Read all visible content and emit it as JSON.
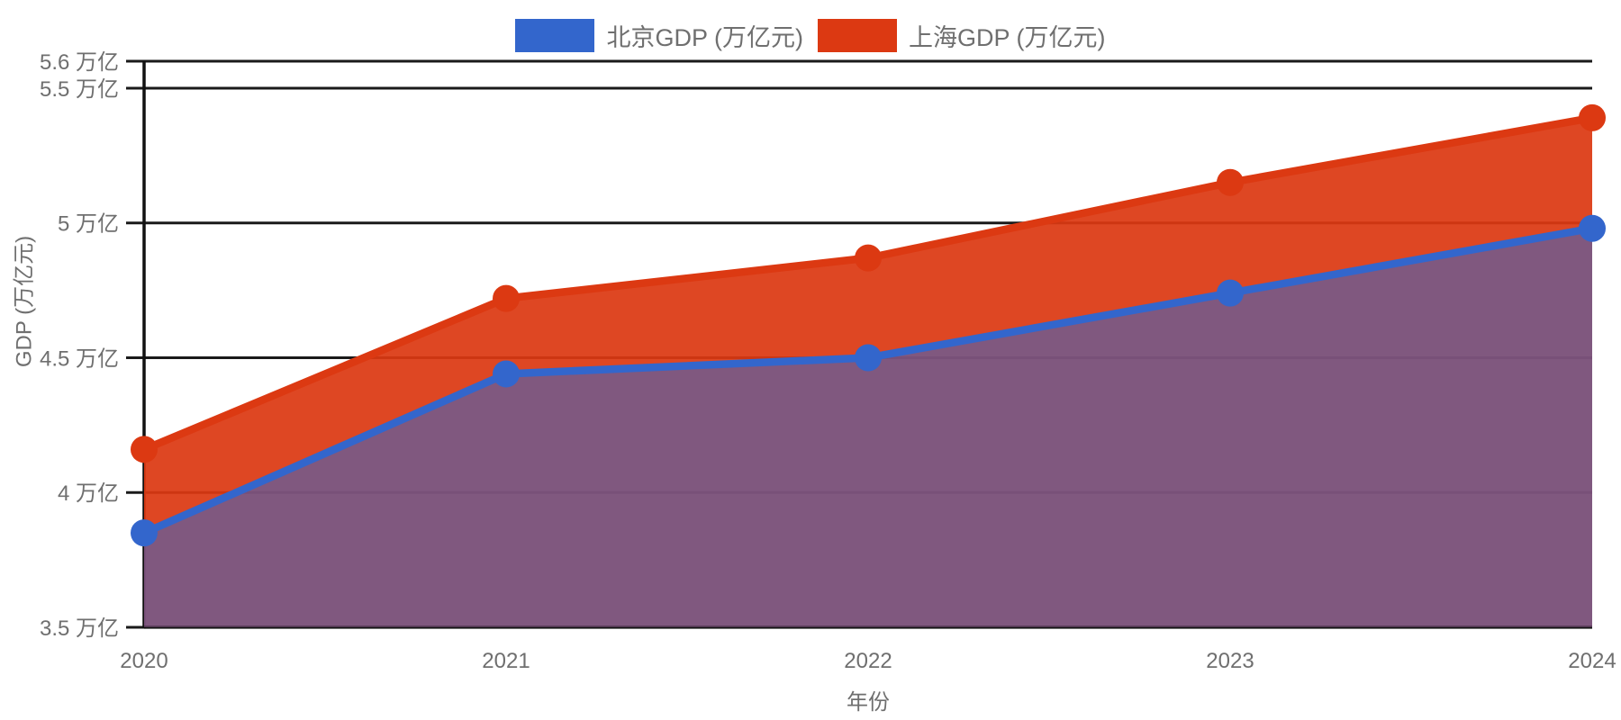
{
  "legend": {
    "position": "top-center"
  },
  "chart_data": {
    "type": "area",
    "title": "",
    "x": [
      "2020",
      "2021",
      "2022",
      "2023",
      "2024"
    ],
    "series": [
      {
        "name": "北京GDP (万亿元)",
        "color": "#3366CC",
        "fill_opacity": 0.55,
        "values": [
          3.85,
          4.44,
          4.5,
          4.74,
          4.98
        ]
      },
      {
        "name": "上海GDP (万亿元)",
        "color": "#DC3912",
        "fill_opacity": 0.93,
        "values": [
          4.16,
          4.72,
          4.87,
          5.15,
          5.39
        ]
      }
    ],
    "xlabel": "年份",
    "ylabel": "GDP (万亿元)",
    "ylim": [
      3.5,
      5.6
    ],
    "yticks": [
      {
        "v": 5.6,
        "label": "5.6 万亿"
      },
      {
        "v": 5.5,
        "label": "5.5 万亿"
      },
      {
        "v": 5.0,
        "label": "5 万亿"
      },
      {
        "v": 4.5,
        "label": "4.5 万亿"
      },
      {
        "v": 4.0,
        "label": "4 万亿"
      },
      {
        "v": 3.5,
        "label": "3.5 万亿"
      }
    ],
    "grid": true,
    "overlap_color": "#7D5578",
    "grid_color": "#1a1a1a",
    "text_color": "#6F6F6F",
    "background": "#ffffff",
    "legend_position": "top"
  }
}
